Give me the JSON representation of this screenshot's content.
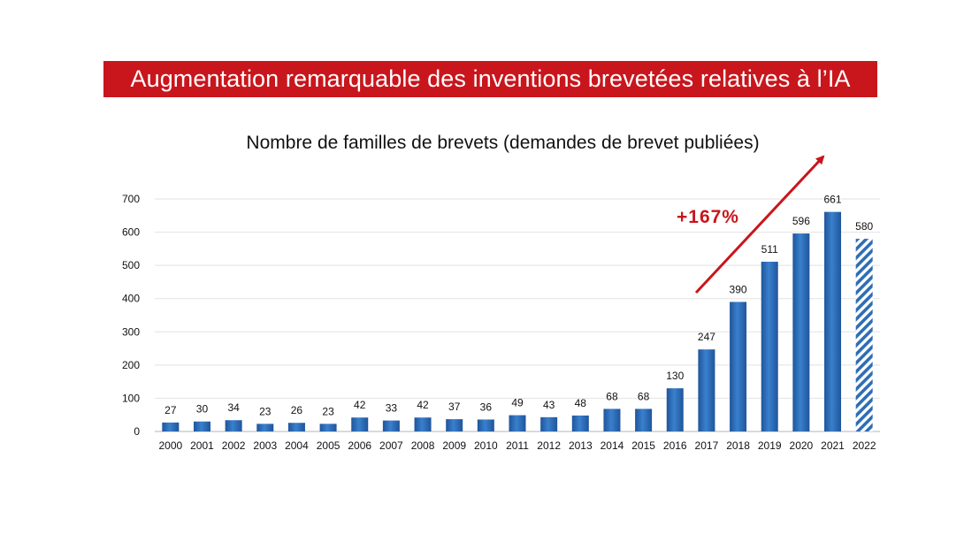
{
  "banner": {
    "title": "Augmentation remarquable des inventions brevetées relatives à l’IA"
  },
  "chart_data": {
    "type": "bar",
    "title": "Nombre de familles de brevets (demandes de brevet publiées)",
    "xlabel": "",
    "ylabel": "",
    "ylim": [
      0,
      700
    ],
    "yticks": [
      0,
      100,
      200,
      300,
      400,
      500,
      600,
      700
    ],
    "grid": true,
    "categories": [
      "2000",
      "2001",
      "2002",
      "2003",
      "2004",
      "2005",
      "2006",
      "2007",
      "2008",
      "2009",
      "2010",
      "2011",
      "2012",
      "2013",
      "2014",
      "2015",
      "2016",
      "2017",
      "2018",
      "2019",
      "2020",
      "2021",
      "2022"
    ],
    "values": [
      27,
      30,
      34,
      23,
      26,
      23,
      42,
      33,
      42,
      37,
      36,
      49,
      43,
      48,
      68,
      68,
      130,
      247,
      390,
      511,
      596,
      661,
      580
    ],
    "hatched_categories": [
      "2022"
    ],
    "bar_color": "#2f6db5",
    "annotation": {
      "text": "+167%",
      "color": "#c8161c"
    }
  }
}
